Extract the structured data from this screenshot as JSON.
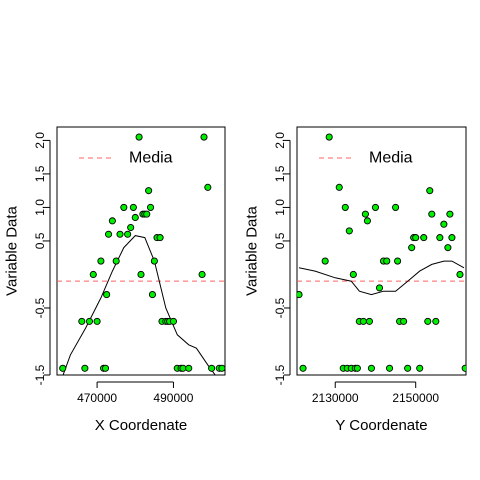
{
  "point_color": "#00ee00",
  "mean_color": "#ff6060",
  "chart_data": [
    {
      "type": "scatter",
      "xlabel": "X Coordenate",
      "ylabel": "Variable Data",
      "legend": {
        "label": "Media",
        "position": "top-left"
      },
      "mean_value": -0.1,
      "xlim": [
        459500,
        503500
      ],
      "ylim": [
        -1.5,
        2.2
      ],
      "x_ticks": [
        470000,
        490000
      ],
      "y_ticks": [
        -1.5,
        -0.5,
        0.5,
        1.0,
        1.5,
        2.0
      ],
      "y_tick_labels": [
        "-1.5",
        "-0.5",
        "0.5",
        "1.0",
        "1.5",
        "2.0"
      ],
      "points": [
        [
          461000,
          -1.4
        ],
        [
          466000,
          -0.7
        ],
        [
          466800,
          -1.4
        ],
        [
          468000,
          -0.7
        ],
        [
          469000,
          0.0
        ],
        [
          470000,
          -0.7
        ],
        [
          471000,
          0.2
        ],
        [
          471700,
          -1.4
        ],
        [
          472200,
          -1.4
        ],
        [
          472500,
          -0.3
        ],
        [
          473000,
          0.6
        ],
        [
          474000,
          0.8
        ],
        [
          475000,
          0.2
        ],
        [
          476000,
          0.6
        ],
        [
          477000,
          1.0
        ],
        [
          478000,
          0.6
        ],
        [
          478800,
          0.7
        ],
        [
          479500,
          1.0
        ],
        [
          480000,
          0.85
        ],
        [
          481000,
          2.05
        ],
        [
          481500,
          0.0
        ],
        [
          482000,
          0.9
        ],
        [
          482500,
          0.9
        ],
        [
          483000,
          0.9
        ],
        [
          483500,
          1.25
        ],
        [
          484000,
          1.0
        ],
        [
          484500,
          -0.3
        ],
        [
          485000,
          0.2
        ],
        [
          485700,
          0.55
        ],
        [
          486500,
          0.55
        ],
        [
          487000,
          -0.7
        ],
        [
          488000,
          -0.7
        ],
        [
          488500,
          -0.7
        ],
        [
          489000,
          -0.7
        ],
        [
          490000,
          -0.7
        ],
        [
          491000,
          -1.4
        ],
        [
          492000,
          -1.4
        ],
        [
          492500,
          -1.4
        ],
        [
          494000,
          -1.4
        ],
        [
          497500,
          0.0
        ],
        [
          498000,
          2.05
        ],
        [
          499000,
          1.3
        ],
        [
          500000,
          -1.4
        ],
        [
          502000,
          -1.4
        ],
        [
          502700,
          -1.4
        ]
      ],
      "smooth_line": [
        [
          459500,
          -1.75
        ],
        [
          463000,
          -1.2
        ],
        [
          467000,
          -0.8
        ],
        [
          471000,
          -0.35
        ],
        [
          474000,
          0.05
        ],
        [
          477000,
          0.4
        ],
        [
          480000,
          0.58
        ],
        [
          482500,
          0.55
        ],
        [
          485000,
          0.2
        ],
        [
          488000,
          -0.5
        ],
        [
          491000,
          -0.9
        ],
        [
          494000,
          -1.05
        ],
        [
          496000,
          -1.1
        ],
        [
          499000,
          -1.35
        ],
        [
          503500,
          -1.7
        ]
      ]
    },
    {
      "type": "scatter",
      "xlabel": "Y Coordenate",
      "ylabel": "Variable Data",
      "legend": {
        "label": "Media",
        "position": "top-left"
      },
      "mean_value": -0.1,
      "xlim": [
        2120500,
        2162500
      ],
      "ylim": [
        -1.5,
        2.2
      ],
      "x_ticks": [
        2130000,
        2150000
      ],
      "y_ticks": [
        -1.5,
        -0.5,
        0.5,
        1.0,
        1.5,
        2.0
      ],
      "y_tick_labels": [
        "-1.5",
        "-0.5",
        "0.5",
        "1.0",
        "1.5",
        "2.0"
      ],
      "points": [
        [
          2121000,
          -0.3
        ],
        [
          2122000,
          -1.4
        ],
        [
          2127500,
          0.2
        ],
        [
          2128500,
          2.05
        ],
        [
          2131000,
          1.3
        ],
        [
          2132000,
          -1.4
        ],
        [
          2132500,
          1.0
        ],
        [
          2133000,
          -1.4
        ],
        [
          2133500,
          0.65
        ],
        [
          2134000,
          -1.4
        ],
        [
          2134500,
          0.0
        ],
        [
          2135000,
          -1.4
        ],
        [
          2135500,
          -1.4
        ],
        [
          2136000,
          -0.7
        ],
        [
          2137000,
          -0.7
        ],
        [
          2137500,
          0.9
        ],
        [
          2138000,
          0.8
        ],
        [
          2138500,
          -0.7
        ],
        [
          2139000,
          -1.4
        ],
        [
          2140000,
          1.0
        ],
        [
          2141000,
          -0.2
        ],
        [
          2142000,
          0.2
        ],
        [
          2142800,
          0.2
        ],
        [
          2143500,
          -1.4
        ],
        [
          2145000,
          1.0
        ],
        [
          2145500,
          0.2
        ],
        [
          2146000,
          -0.7
        ],
        [
          2147000,
          -0.7
        ],
        [
          2148000,
          -1.4
        ],
        [
          2149000,
          0.4
        ],
        [
          2149500,
          0.55
        ],
        [
          2150000,
          0.55
        ],
        [
          2151000,
          -1.4
        ],
        [
          2152000,
          0.55
        ],
        [
          2153000,
          -0.7
        ],
        [
          2153500,
          1.25
        ],
        [
          2154000,
          0.9
        ],
        [
          2155000,
          -0.7
        ],
        [
          2156000,
          0.55
        ],
        [
          2157000,
          0.75
        ],
        [
          2158000,
          0.4
        ],
        [
          2158500,
          0.9
        ],
        [
          2159000,
          0.55
        ],
        [
          2161000,
          0.0
        ],
        [
          2162300,
          -1.4
        ]
      ],
      "smooth_line": [
        [
          2121000,
          0.1
        ],
        [
          2125000,
          0.05
        ],
        [
          2130000,
          -0.05
        ],
        [
          2134000,
          -0.1
        ],
        [
          2136000,
          -0.25
        ],
        [
          2139000,
          -0.3
        ],
        [
          2142000,
          -0.25
        ],
        [
          2145000,
          -0.25
        ],
        [
          2148000,
          -0.1
        ],
        [
          2151000,
          0.05
        ],
        [
          2154000,
          0.15
        ],
        [
          2157000,
          0.2
        ],
        [
          2159000,
          0.2
        ],
        [
          2162000,
          0.1
        ]
      ]
    }
  ]
}
